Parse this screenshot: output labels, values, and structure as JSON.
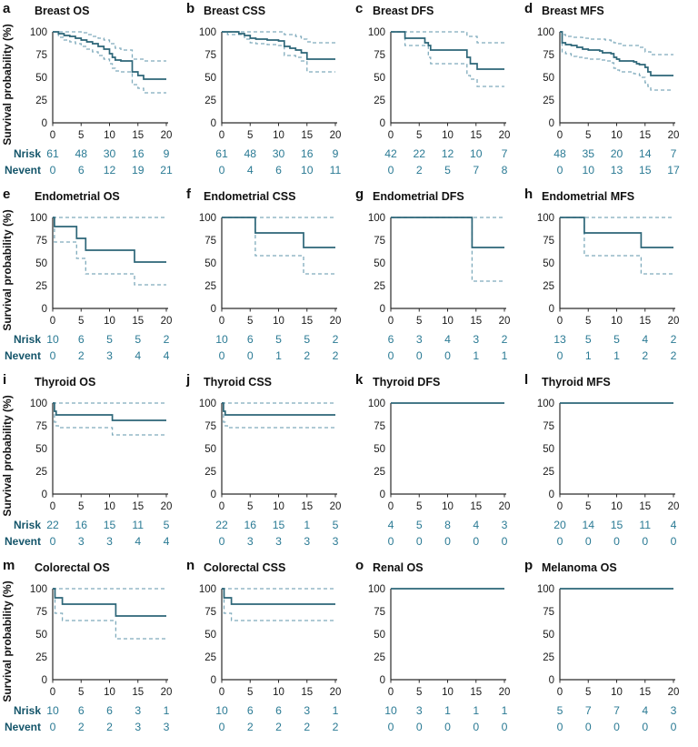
{
  "figure": {
    "ylabel": "Survival probability (%)",
    "nrisk_label": "Nrisk",
    "nevent_label": "Nevent",
    "x_ticks": [
      0,
      5,
      10,
      15,
      20
    ],
    "y_ticks": [
      0,
      25,
      50,
      75,
      100
    ],
    "xlim": [
      0,
      20
    ],
    "ylim": [
      0,
      100
    ],
    "colors": {
      "main_line": "#2c6678",
      "ci_line": "#7fabbc",
      "numbers": "#2a7a94",
      "row_labels": "#14556a",
      "axis": "#2b2b2b",
      "text": "#1a1a1a"
    }
  },
  "chart_data": [
    {
      "type": "line",
      "letter": "a",
      "title": "Breast OS",
      "nrisk": [
        "61",
        "48",
        "30",
        "16",
        "9"
      ],
      "nevent": [
        "0",
        "6",
        "12",
        "19",
        "21"
      ],
      "main": [
        [
          0,
          100
        ],
        [
          1,
          98
        ],
        [
          2,
          96
        ],
        [
          3,
          95
        ],
        [
          4,
          93
        ],
        [
          5,
          91
        ],
        [
          6,
          89
        ],
        [
          7,
          87
        ],
        [
          8,
          84
        ],
        [
          9,
          81
        ],
        [
          10,
          76
        ],
        [
          10.5,
          72
        ],
        [
          11,
          69
        ],
        [
          12,
          68
        ],
        [
          14,
          56
        ],
        [
          15,
          52
        ],
        [
          16,
          48
        ]
      ],
      "upper": [
        [
          0,
          100
        ],
        [
          5,
          99
        ],
        [
          6,
          97
        ],
        [
          7,
          95
        ],
        [
          8,
          93
        ],
        [
          9,
          91
        ],
        [
          10,
          87
        ],
        [
          11,
          82
        ],
        [
          12,
          80
        ],
        [
          14,
          70
        ],
        [
          16,
          68
        ]
      ],
      "lower": [
        [
          0,
          100
        ],
        [
          1,
          94
        ],
        [
          2,
          91
        ],
        [
          3,
          89
        ],
        [
          4,
          87
        ],
        [
          5,
          84
        ],
        [
          6,
          81
        ],
        [
          7,
          78
        ],
        [
          8,
          74
        ],
        [
          9,
          70
        ],
        [
          10,
          65
        ],
        [
          10.5,
          60
        ],
        [
          11,
          57
        ],
        [
          12,
          56
        ],
        [
          14,
          42
        ],
        [
          15,
          38
        ],
        [
          16,
          33
        ]
      ]
    },
    {
      "type": "line",
      "letter": "b",
      "title": "Breast CSS",
      "nrisk": [
        "61",
        "48",
        "30",
        "16",
        "9"
      ],
      "nevent": [
        "0",
        "4",
        "6",
        "10",
        "11"
      ],
      "main": [
        [
          0,
          100
        ],
        [
          3,
          98
        ],
        [
          4,
          96
        ],
        [
          5,
          93
        ],
        [
          6,
          92
        ],
        [
          8,
          91
        ],
        [
          10,
          90
        ],
        [
          11,
          84
        ],
        [
          12,
          82
        ],
        [
          13,
          80
        ],
        [
          14,
          77
        ],
        [
          15,
          70
        ]
      ],
      "upper": [
        [
          0,
          100
        ],
        [
          11,
          97
        ],
        [
          13,
          95
        ],
        [
          14,
          92
        ],
        [
          15,
          89
        ],
        [
          16,
          88
        ]
      ],
      "lower": [
        [
          0,
          100
        ],
        [
          1,
          97
        ],
        [
          4,
          92
        ],
        [
          5,
          88
        ],
        [
          6,
          87
        ],
        [
          8,
          86
        ],
        [
          10,
          85
        ],
        [
          11,
          74
        ],
        [
          13,
          72
        ],
        [
          14,
          68
        ],
        [
          15,
          56
        ]
      ]
    },
    {
      "type": "line",
      "letter": "c",
      "title": "Breast DFS",
      "nrisk": [
        "42",
        "22",
        "12",
        "10",
        "7"
      ],
      "nevent": [
        "0",
        "2",
        "5",
        "7",
        "8"
      ],
      "main": [
        [
          0,
          100
        ],
        [
          2.5,
          93
        ],
        [
          6,
          88
        ],
        [
          6.6,
          85
        ],
        [
          7,
          80
        ],
        [
          13.4,
          72
        ],
        [
          14,
          65
        ],
        [
          15.2,
          59
        ]
      ],
      "upper": [
        [
          0,
          100
        ],
        [
          13.4,
          95
        ],
        [
          15.2,
          88
        ]
      ],
      "lower": [
        [
          0,
          100
        ],
        [
          2.5,
          85
        ],
        [
          6.6,
          72
        ],
        [
          7,
          65
        ],
        [
          13.4,
          52
        ],
        [
          14,
          48
        ],
        [
          15.2,
          40
        ]
      ]
    },
    {
      "type": "line",
      "letter": "d",
      "title": "Breast MFS",
      "nrisk": [
        "48",
        "35",
        "20",
        "14",
        "7"
      ],
      "nevent": [
        "0",
        "10",
        "13",
        "15",
        "17"
      ],
      "main": [
        [
          0,
          100
        ],
        [
          0.4,
          88
        ],
        [
          1,
          86
        ],
        [
          2,
          85
        ],
        [
          3,
          83
        ],
        [
          4,
          81
        ],
        [
          5,
          80
        ],
        [
          7,
          79
        ],
        [
          7.5,
          77
        ],
        [
          9,
          76
        ],
        [
          9.5,
          72
        ],
        [
          10,
          70
        ],
        [
          10.5,
          68
        ],
        [
          13,
          67
        ],
        [
          13.5,
          65
        ],
        [
          14,
          64
        ],
        [
          15,
          61
        ],
        [
          15.5,
          56
        ],
        [
          16,
          52
        ]
      ],
      "upper": [
        [
          0,
          100
        ],
        [
          0.4,
          97
        ],
        [
          1,
          95
        ],
        [
          2,
          94
        ],
        [
          4,
          93
        ],
        [
          5,
          92
        ],
        [
          8,
          91
        ],
        [
          9,
          90
        ],
        [
          9.5,
          88
        ],
        [
          10,
          87
        ],
        [
          11,
          85
        ],
        [
          14,
          83
        ],
        [
          15,
          78
        ],
        [
          16,
          75
        ]
      ],
      "lower": [
        [
          0,
          100
        ],
        [
          0.4,
          78
        ],
        [
          1,
          76
        ],
        [
          2,
          73
        ],
        [
          3,
          72
        ],
        [
          4,
          71
        ],
        [
          5,
          70
        ],
        [
          7,
          69
        ],
        [
          8,
          68
        ],
        [
          9,
          66
        ],
        [
          9.5,
          60
        ],
        [
          10,
          58
        ],
        [
          10.5,
          56
        ],
        [
          13,
          54
        ],
        [
          14,
          52
        ],
        [
          14.5,
          50
        ],
        [
          15,
          44
        ],
        [
          15.5,
          40
        ],
        [
          16,
          36
        ]
      ]
    },
    {
      "type": "line",
      "letter": "e",
      "title": "Endometrial OS",
      "nrisk": [
        "10",
        "6",
        "5",
        "5",
        "2"
      ],
      "nevent": [
        "0",
        "2",
        "3",
        "4",
        "4"
      ],
      "main": [
        [
          0,
          100
        ],
        [
          0.3,
          90
        ],
        [
          4.2,
          77
        ],
        [
          5.8,
          64
        ],
        [
          14.4,
          51
        ]
      ],
      "upper": [
        [
          0,
          100
        ]
      ],
      "lower": [
        [
          0,
          100
        ],
        [
          0.3,
          73
        ],
        [
          4.2,
          55
        ],
        [
          5.8,
          38
        ],
        [
          14.4,
          26
        ]
      ]
    },
    {
      "type": "line",
      "letter": "f",
      "title": "Endometrial CSS",
      "nrisk": [
        "10",
        "6",
        "5",
        "5",
        "2"
      ],
      "nevent": [
        "0",
        "0",
        "1",
        "2",
        "2"
      ],
      "main": [
        [
          0,
          100
        ],
        [
          5.9,
          83
        ],
        [
          14.4,
          67
        ]
      ],
      "upper": [
        [
          0,
          100
        ]
      ],
      "lower": [
        [
          0,
          100
        ],
        [
          5.9,
          58
        ],
        [
          14.4,
          38
        ]
      ]
    },
    {
      "type": "line",
      "letter": "g",
      "title": "Endometrial DFS",
      "nrisk": [
        "6",
        "3",
        "4",
        "3",
        "2"
      ],
      "nevent": [
        "0",
        "0",
        "0",
        "1",
        "1"
      ],
      "main": [
        [
          0,
          100
        ],
        [
          14.3,
          67
        ]
      ],
      "upper": [
        [
          0,
          100
        ]
      ],
      "lower": [
        [
          0,
          100
        ],
        [
          14.3,
          30
        ]
      ]
    },
    {
      "type": "line",
      "letter": "h",
      "title": "Endometrial MFS",
      "nrisk": [
        "13",
        "5",
        "5",
        "4",
        "2"
      ],
      "nevent": [
        "0",
        "1",
        "1",
        "2",
        "2"
      ],
      "main": [
        [
          0,
          100
        ],
        [
          4.3,
          83
        ],
        [
          14.3,
          67
        ]
      ],
      "upper": [
        [
          0,
          100
        ]
      ],
      "lower": [
        [
          0,
          100
        ],
        [
          4.3,
          58
        ],
        [
          14.3,
          38
        ]
      ]
    },
    {
      "type": "line",
      "letter": "i",
      "title": "Thyroid OS",
      "nrisk": [
        "22",
        "16",
        "15",
        "11",
        "5"
      ],
      "nevent": [
        "0",
        "3",
        "3",
        "4",
        "4"
      ],
      "main": [
        [
          0,
          100
        ],
        [
          0.3,
          91
        ],
        [
          0.6,
          87
        ],
        [
          10.5,
          81
        ]
      ],
      "upper": [
        [
          0,
          100
        ]
      ],
      "lower": [
        [
          0,
          100
        ],
        [
          0.3,
          79
        ],
        [
          0.6,
          75
        ],
        [
          1,
          73
        ],
        [
          10.5,
          65
        ]
      ]
    },
    {
      "type": "line",
      "letter": "j",
      "title": "Thyroid CSS",
      "nrisk": [
        "22",
        "16",
        "15",
        "1",
        "5"
      ],
      "nevent": [
        "0",
        "3",
        "3",
        "3",
        "3"
      ],
      "main": [
        [
          0,
          100
        ],
        [
          0.3,
          91
        ],
        [
          0.6,
          87
        ]
      ],
      "upper": [
        [
          0,
          100
        ]
      ],
      "lower": [
        [
          0,
          100
        ],
        [
          0.3,
          79
        ],
        [
          0.6,
          75
        ],
        [
          1,
          73
        ]
      ]
    },
    {
      "type": "line",
      "letter": "k",
      "title": "Thyroid DFS",
      "nrisk": [
        "4",
        "5",
        "8",
        "4",
        "3"
      ],
      "nevent": [
        "0",
        "0",
        "0",
        "0",
        "0"
      ],
      "main": [
        [
          0,
          100
        ]
      ],
      "upper": [],
      "lower": []
    },
    {
      "type": "line",
      "letter": "l",
      "title": "Thyroid MFS",
      "nrisk": [
        "20",
        "14",
        "15",
        "11",
        "4"
      ],
      "nevent": [
        "0",
        "0",
        "0",
        "0",
        "0"
      ],
      "main": [
        [
          0,
          100
        ]
      ],
      "upper": [],
      "lower": []
    },
    {
      "type": "line",
      "letter": "m",
      "title": "Colorectal OS",
      "nrisk": [
        "10",
        "6",
        "6",
        "3",
        "1"
      ],
      "nevent": [
        "0",
        "2",
        "2",
        "3",
        "3"
      ],
      "main": [
        [
          0,
          100
        ],
        [
          0.4,
          90
        ],
        [
          1.7,
          83
        ],
        [
          11.1,
          70
        ]
      ],
      "upper": [
        [
          0,
          100
        ]
      ],
      "lower": [
        [
          0,
          100
        ],
        [
          0.4,
          73
        ],
        [
          1.7,
          65
        ],
        [
          11.1,
          45
        ]
      ]
    },
    {
      "type": "line",
      "letter": "n",
      "title": "Colorectal CSS",
      "nrisk": [
        "10",
        "6",
        "6",
        "3",
        "1"
      ],
      "nevent": [
        "0",
        "2",
        "2",
        "2",
        "2"
      ],
      "main": [
        [
          0,
          100
        ],
        [
          0.4,
          90
        ],
        [
          1.7,
          83
        ]
      ],
      "upper": [
        [
          0,
          100
        ]
      ],
      "lower": [
        [
          0,
          100
        ],
        [
          0.4,
          73
        ],
        [
          1.7,
          65
        ]
      ]
    },
    {
      "type": "line",
      "letter": "o",
      "title": "Renal OS",
      "nrisk": [
        "10",
        "3",
        "1",
        "1",
        "1"
      ],
      "nevent": [
        "0",
        "0",
        "0",
        "0",
        "0"
      ],
      "main": [
        [
          0,
          100
        ]
      ],
      "upper": [],
      "lower": []
    },
    {
      "type": "line",
      "letter": "p",
      "title": "Melanoma OS",
      "nrisk": [
        "5",
        "7",
        "7",
        "4",
        "3"
      ],
      "nevent": [
        "0",
        "0",
        "0",
        "0",
        "0"
      ],
      "main": [
        [
          0,
          100
        ]
      ],
      "upper": [],
      "lower": []
    }
  ]
}
